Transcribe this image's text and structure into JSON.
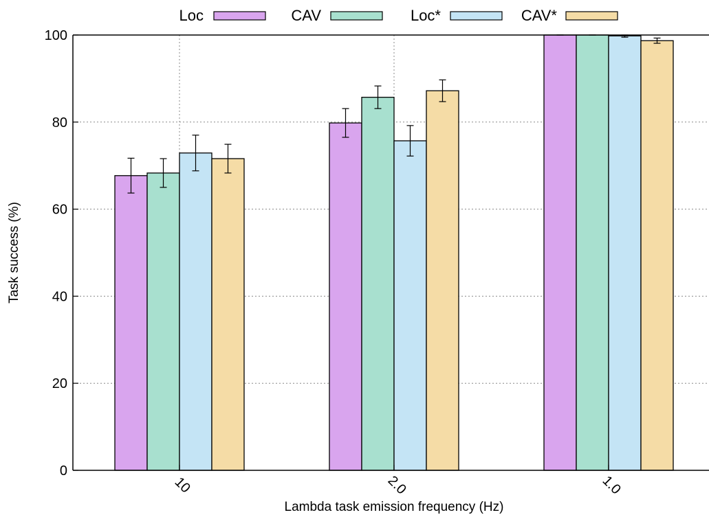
{
  "chart_data": {
    "type": "bar",
    "title": "",
    "xlabel": "Lambda task emission frequency (Hz)",
    "ylabel": "Task success (%)",
    "ylim": [
      0,
      100
    ],
    "yticks": [
      "0",
      "20",
      "40",
      "60",
      "80",
      "100"
    ],
    "grid": true,
    "legend_position": "top",
    "legend_labels": [
      "Loc",
      "CAV",
      "Loc*",
      "CAV*"
    ],
    "categories": [
      "10",
      "2.0",
      "1.0"
    ],
    "series": [
      {
        "name": "Loc",
        "color": "#d9a5ee",
        "values": [
          67.7,
          79.8,
          100
        ],
        "errors": [
          4.0,
          3.3,
          0
        ]
      },
      {
        "name": "CAV",
        "color": "#a8e0cf",
        "values": [
          68.3,
          85.7,
          100
        ],
        "errors": [
          3.3,
          2.6,
          0
        ]
      },
      {
        "name": "Loc*",
        "color": "#c4e4f5",
        "values": [
          72.9,
          75.7,
          99.8
        ],
        "errors": [
          4.1,
          3.5,
          0.3
        ]
      },
      {
        "name": "CAV*",
        "color": "#f5dca6",
        "values": [
          71.6,
          87.2,
          98.7
        ],
        "errors": [
          3.3,
          2.5,
          0.6
        ]
      }
    ]
  }
}
